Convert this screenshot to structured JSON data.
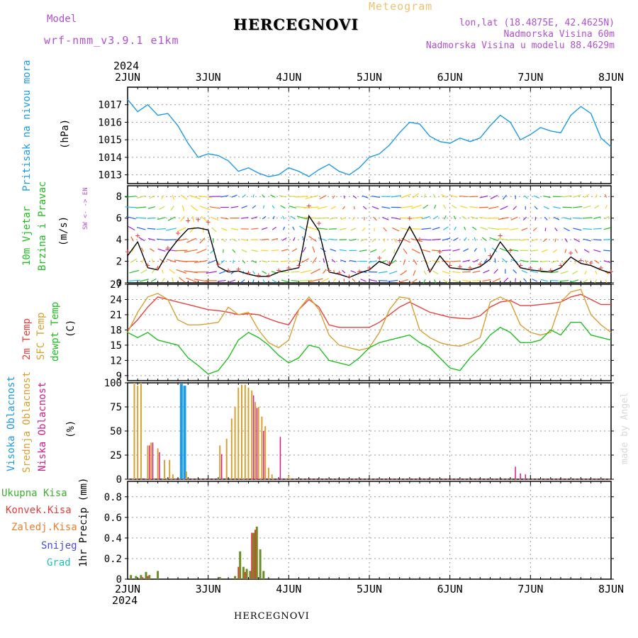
{
  "header": {
    "model_label": "Model",
    "model_name": "wrf-nmm_v3.9.1 e1km",
    "title": "HERCEGNOVI",
    "meteogram_label": "Meteogram",
    "lonlat": "lon,lat (18.4875E, 42.4625N)",
    "altitude": "Nadmorska Visina 60m",
    "model_altitude": "Nadmorska Visina u modelu 88.4629m",
    "year_top": "2024",
    "year_bottom": "2024",
    "footer": "HERCEGNOVI",
    "watermark": "made by Angel"
  },
  "colors": {
    "pressure": "#1e9be6",
    "temp2m": "#e8403c",
    "sfc": "#d9a033",
    "dew": "#20c020",
    "high_cloud": "#1e9be6",
    "mid_cloud": "#d9a033",
    "low_cloud": "#d81b8a",
    "precip_total": "#3cb030",
    "precip_conv": "#e83c3c",
    "precip_frozen": "#f07d2c",
    "snow": "#4848e0",
    "hail": "#20c0b0"
  },
  "chart_data": [
    {
      "type": "line",
      "panel": "pressure",
      "ylabel": "Pritisak na nivou mora",
      "unit": "(hPa)",
      "x_ticks": [
        "2JUN",
        "3JUN",
        "4JUN",
        "5JUN",
        "6JUN",
        "7JUN",
        "8JUN"
      ],
      "ylim": [
        1012.5,
        1018
      ],
      "y_ticks": [
        1013,
        1014,
        1015,
        1016,
        1017
      ],
      "x_hours": [
        0,
        3,
        6,
        9,
        12,
        15,
        18,
        21,
        24,
        27,
        30,
        33,
        36,
        39,
        42,
        45,
        48,
        51,
        54,
        57,
        60,
        63,
        66,
        69,
        72,
        75,
        78,
        81,
        84,
        87,
        90,
        93,
        96,
        99,
        102,
        105,
        108,
        111,
        114,
        117,
        120,
        123,
        126,
        129,
        132,
        135,
        138,
        141,
        144
      ],
      "values": [
        1017.3,
        1016.6,
        1017.0,
        1016.4,
        1016.5,
        1015.8,
        1014.8,
        1014.0,
        1014.2,
        1014.1,
        1013.8,
        1013.2,
        1013.4,
        1013.1,
        1012.9,
        1013.0,
        1013.4,
        1013.2,
        1012.9,
        1013.3,
        1013.6,
        1013.2,
        1013.0,
        1013.4,
        1014.0,
        1014.2,
        1014.7,
        1015.4,
        1016.0,
        1015.9,
        1015.2,
        1014.9,
        1014.8,
        1015.1,
        1014.9,
        1015.1,
        1015.8,
        1016.4,
        1016.0,
        1015.0,
        1015.3,
        1015.7,
        1015.5,
        1015.4,
        1016.4,
        1016.9,
        1016.5,
        1015.1,
        1014.6
      ]
    },
    {
      "type": "line",
      "panel": "wind",
      "ylabel": "10m Vjetar Brzina i Pravac",
      "unit": "(m/s)",
      "compass": "W <- -> E",
      "compass_ns": "N",
      "compass_s": "S",
      "ylim": [
        0,
        9
      ],
      "y_ticks": [
        0,
        2,
        4,
        6,
        8
      ],
      "x_hours": [
        0,
        3,
        6,
        9,
        12,
        15,
        18,
        21,
        24,
        27,
        30,
        33,
        36,
        39,
        42,
        45,
        48,
        51,
        54,
        57,
        60,
        63,
        66,
        69,
        72,
        75,
        78,
        81,
        84,
        87,
        90,
        93,
        96,
        99,
        102,
        105,
        108,
        111,
        114,
        117,
        120,
        123,
        126,
        129,
        132,
        135,
        138,
        141,
        144
      ],
      "values": [
        2.5,
        3.8,
        1.4,
        1.2,
        2.8,
        4.0,
        5.0,
        5.1,
        4.9,
        1.5,
        1.0,
        1.1,
        0.8,
        0.6,
        0.6,
        1.0,
        1.2,
        1.4,
        6.2,
        4.8,
        1.0,
        0.8,
        0.5,
        0.9,
        1.2,
        2.0,
        1.6,
        3.4,
        5.2,
        3.5,
        1.0,
        2.5,
        1.4,
        1.3,
        1.2,
        1.5,
        2.2,
        3.8,
        2.6,
        1.4,
        1.2,
        1.1,
        1.0,
        1.4,
        2.4,
        1.8,
        1.6,
        1.2,
        0.9
      ]
    },
    {
      "type": "line",
      "panel": "temperature",
      "series_labels": [
        "2m Temp",
        "SFC Temp",
        "dewpt Temp"
      ],
      "unit": "(C)",
      "ylim": [
        8,
        27
      ],
      "y_ticks": [
        9,
        12,
        15,
        18,
        21,
        24,
        27
      ],
      "x_hours": [
        0,
        3,
        6,
        9,
        12,
        15,
        18,
        21,
        24,
        27,
        30,
        33,
        36,
        39,
        42,
        45,
        48,
        51,
        54,
        57,
        60,
        63,
        66,
        69,
        72,
        75,
        78,
        81,
        84,
        87,
        90,
        93,
        96,
        99,
        102,
        105,
        108,
        111,
        114,
        117,
        120,
        123,
        126,
        129,
        132,
        135,
        138,
        141,
        144
      ],
      "series": [
        {
          "key": "t2m",
          "values": [
            18.0,
            20.0,
            22.5,
            24.5,
            24.0,
            23.5,
            23.0,
            22.5,
            22.0,
            21.8,
            21.5,
            21.0,
            21.2,
            21.0,
            20.2,
            19.5,
            19.0,
            22.0,
            24.0,
            22.5,
            19.0,
            18.5,
            18.5,
            18.5,
            18.5,
            19.5,
            21.0,
            22.5,
            23.5,
            22.5,
            21.5,
            21.0,
            20.5,
            20.3,
            20.2,
            20.8,
            22.5,
            23.5,
            23.8,
            22.8,
            22.8,
            23.0,
            23.2,
            23.5,
            24.5,
            25.0,
            24.0,
            23.0,
            23.0
          ]
        },
        {
          "key": "sfc",
          "values": [
            17.5,
            21.5,
            24.5,
            25.2,
            24.0,
            20.0,
            19.0,
            19.0,
            19.2,
            19.5,
            22.5,
            21.0,
            21.5,
            18.0,
            15.5,
            14.5,
            16.0,
            22.0,
            24.5,
            22.0,
            17.0,
            15.0,
            14.5,
            14.0,
            14.5,
            17.5,
            22.0,
            24.5,
            24.2,
            18.0,
            16.5,
            15.5,
            15.0,
            14.8,
            15.5,
            16.5,
            23.5,
            24.5,
            23.5,
            19.0,
            17.5,
            17.0,
            17.5,
            23.5,
            25.5,
            26.0,
            21.0,
            19.0,
            17.5
          ]
        },
        {
          "key": "dew",
          "values": [
            17.5,
            16.5,
            17.5,
            16.0,
            15.5,
            15.0,
            12.5,
            11.0,
            9.3,
            10.0,
            12.5,
            16.0,
            17.5,
            16.5,
            15.0,
            13.0,
            11.5,
            12.5,
            15.0,
            14.5,
            12.0,
            11.5,
            11.0,
            12.5,
            14.5,
            15.5,
            16.0,
            16.5,
            17.0,
            15.5,
            14.5,
            12.5,
            10.5,
            10.0,
            12.5,
            14.5,
            17.0,
            18.5,
            17.5,
            15.5,
            15.5,
            16.0,
            18.0,
            17.0,
            19.5,
            19.5,
            17.0,
            16.5,
            16.0
          ]
        }
      ]
    },
    {
      "type": "bar",
      "panel": "clouds",
      "series_labels": [
        "Visoka Oblacnost",
        "Srednja Oblacnost",
        "Niska Oblacnost"
      ],
      "unit": "(%)",
      "ylim": [
        0,
        100
      ],
      "y_ticks": [
        0,
        25,
        50,
        75,
        100
      ],
      "high_x": [
        16.0,
        17.0
      ],
      "high_values": [
        99,
        97
      ],
      "mid_x": [
        2.0,
        3.0,
        4.0,
        6.0,
        7.0,
        9.0,
        11.0,
        12.5,
        13.5,
        17.5,
        27.5,
        29.5,
        31.0,
        32.0,
        33.0,
        34.0,
        35.0,
        36.0,
        37.0,
        38.0,
        39.0,
        40.0,
        41.0,
        42.0,
        43.0,
        48.0
      ],
      "mid_values": [
        100,
        97,
        100,
        35,
        38,
        32,
        20,
        20,
        5,
        8,
        35,
        42,
        63,
        75,
        95,
        98,
        98,
        95,
        92,
        80,
        75,
        65,
        55,
        12,
        5,
        4
      ],
      "low_x": [
        6.5,
        7.5,
        9.5,
        28.0,
        37.5,
        38.5,
        40.5,
        45.5,
        115.5,
        117.0,
        118.5
      ],
      "low_values": [
        35,
        38,
        28,
        26,
        87,
        74,
        50,
        44,
        13,
        6,
        5
      ]
    },
    {
      "type": "bar",
      "panel": "precip",
      "series_labels": [
        "Ukupna Kisa",
        "Konvek.Kisa",
        "Zaledj.Kisa",
        "Snijeg",
        "Grad"
      ],
      "unit": "1hr Precip (mm)",
      "ylim": [
        0,
        0.95
      ],
      "y_ticks": [
        0,
        0.2,
        0.4,
        0.6,
        0.8
      ],
      "total_x": [
        1.0,
        2.5,
        4.0,
        5.5,
        6.5,
        9.0,
        27.5,
        32.0,
        33.5,
        34.5,
        35.5,
        36.5,
        37.5,
        38.5,
        39.5,
        40.5
      ],
      "total_values": [
        0.04,
        0.03,
        0.04,
        0.07,
        0.04,
        0.08,
        0.02,
        0.03,
        0.27,
        0.12,
        0.1,
        0.08,
        0.45,
        0.51,
        0.29,
        0.08
      ],
      "conv_x": [
        4.5,
        6.0,
        33.0,
        35.0,
        37.0,
        38.0
      ],
      "conv_values": [
        0.02,
        0.03,
        0.12,
        0.07,
        0.45,
        0.48
      ]
    }
  ]
}
